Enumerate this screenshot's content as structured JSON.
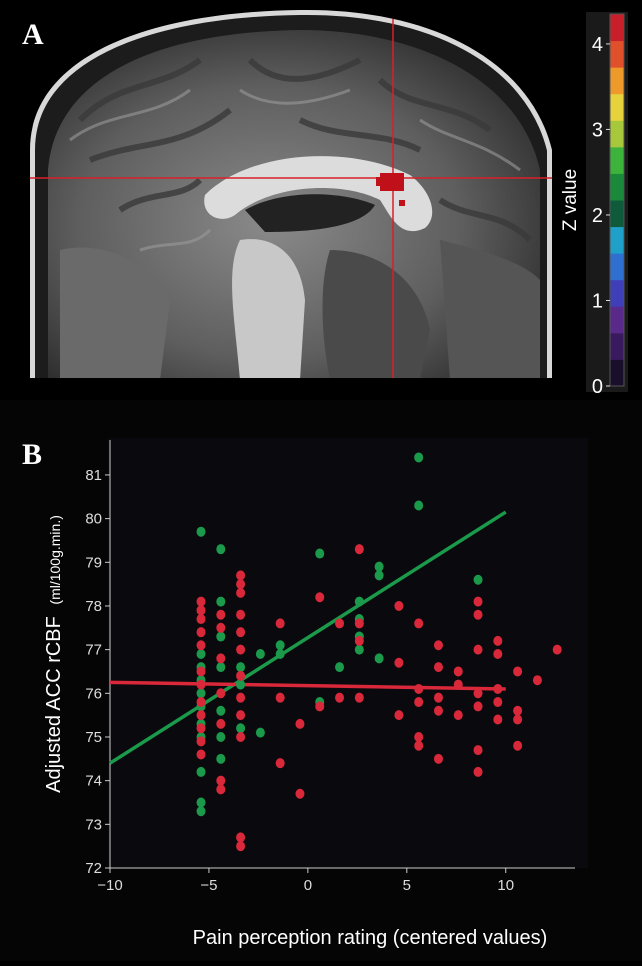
{
  "figure": {
    "panel_a_label": "A",
    "panel_b_label": "B"
  },
  "colorbar": {
    "label": "Z value",
    "ticks": [
      "0",
      "1",
      "2",
      "3",
      "4"
    ],
    "colors": [
      "#1a0f2a",
      "#3a1a5e",
      "#5a2a8a",
      "#3f3fb8",
      "#2f6fd0",
      "#1fa0c8",
      "#0f5a3a",
      "#1a8a3a",
      "#3cb43c",
      "#a8c83c",
      "#e6d23c",
      "#ee9a2a",
      "#e0502a",
      "#c8202a"
    ]
  },
  "mri": {
    "crosshair_color": "#d8202a",
    "activation_color": "#c0101a"
  },
  "chart_data": {
    "type": "scatter",
    "xlabel": "Pain perception rating (centered values)",
    "ylabel": "Adjusted ACC rCBF",
    "ylabel_unit": "(ml/100g.min.)",
    "xlim": [
      -10,
      13.5
    ],
    "ylim": [
      72,
      81.8
    ],
    "xticks": [
      -10,
      -5,
      0,
      5,
      10
    ],
    "yticks": [
      72,
      73,
      74,
      75,
      76,
      77,
      78,
      79,
      80,
      81
    ],
    "xtick_labels": [
      "−10",
      "−5",
      "0",
      "5",
      "10"
    ],
    "ytick_labels": [
      "72",
      "73",
      "74",
      "75",
      "76",
      "77",
      "78",
      "79",
      "80",
      "81"
    ],
    "grid": false,
    "series": [
      {
        "color": "#1a9a4a",
        "points": [
          [
            -5.4,
            79.7
          ],
          [
            -5.4,
            76.9
          ],
          [
            -5.4,
            76.6
          ],
          [
            -5.4,
            76.3
          ],
          [
            -5.4,
            76.0
          ],
          [
            -5.4,
            75.7
          ],
          [
            -5.4,
            75.3
          ],
          [
            -5.4,
            75.0
          ],
          [
            -5.4,
            74.2
          ],
          [
            -5.4,
            73.5
          ],
          [
            -5.4,
            73.3
          ],
          [
            -4.4,
            79.3
          ],
          [
            -4.4,
            78.1
          ],
          [
            -4.4,
            77.3
          ],
          [
            -4.4,
            76.6
          ],
          [
            -4.4,
            75.6
          ],
          [
            -4.4,
            75.0
          ],
          [
            -4.4,
            74.5
          ],
          [
            -3.4,
            76.6
          ],
          [
            -3.4,
            76.2
          ],
          [
            -3.4,
            75.2
          ],
          [
            -2.4,
            76.9
          ],
          [
            -2.4,
            75.1
          ],
          [
            -1.4,
            77.1
          ],
          [
            -1.4,
            76.9
          ],
          [
            0.6,
            79.2
          ],
          [
            0.6,
            75.8
          ],
          [
            1.6,
            76.6
          ],
          [
            2.6,
            78.1
          ],
          [
            2.6,
            77.7
          ],
          [
            2.6,
            77.3
          ],
          [
            2.6,
            77.0
          ],
          [
            3.6,
            78.9
          ],
          [
            3.6,
            78.7
          ],
          [
            3.6,
            76.8
          ],
          [
            5.6,
            81.4
          ],
          [
            5.6,
            80.3
          ],
          [
            8.6,
            78.6
          ]
        ],
        "fit": {
          "x0": -10,
          "y0": 74.4,
          "x1": 10,
          "y1": 80.15
        }
      },
      {
        "color": "#d8283a",
        "points": [
          [
            -5.4,
            78.1
          ],
          [
            -5.4,
            77.9
          ],
          [
            -5.4,
            77.7
          ],
          [
            -5.4,
            77.4
          ],
          [
            -5.4,
            77.1
          ],
          [
            -5.4,
            76.5
          ],
          [
            -5.4,
            76.2
          ],
          [
            -5.4,
            75.8
          ],
          [
            -5.4,
            75.5
          ],
          [
            -5.4,
            75.2
          ],
          [
            -5.4,
            74.9
          ],
          [
            -5.4,
            74.6
          ],
          [
            -4.4,
            77.8
          ],
          [
            -4.4,
            77.5
          ],
          [
            -4.4,
            76.8
          ],
          [
            -4.4,
            76.0
          ],
          [
            -4.4,
            75.3
          ],
          [
            -4.4,
            74.0
          ],
          [
            -4.4,
            73.8
          ],
          [
            -3.4,
            78.7
          ],
          [
            -3.4,
            78.5
          ],
          [
            -3.4,
            78.3
          ],
          [
            -3.4,
            77.8
          ],
          [
            -3.4,
            77.4
          ],
          [
            -3.4,
            77.0
          ],
          [
            -3.4,
            76.4
          ],
          [
            -3.4,
            75.9
          ],
          [
            -3.4,
            75.5
          ],
          [
            -3.4,
            75.0
          ],
          [
            -3.4,
            72.7
          ],
          [
            -3.4,
            72.5
          ],
          [
            -1.4,
            77.6
          ],
          [
            -1.4,
            75.9
          ],
          [
            -1.4,
            74.4
          ],
          [
            -0.4,
            75.3
          ],
          [
            -0.4,
            73.7
          ],
          [
            0.6,
            78.2
          ],
          [
            0.6,
            75.7
          ],
          [
            1.6,
            77.6
          ],
          [
            1.6,
            75.9
          ],
          [
            2.6,
            79.3
          ],
          [
            2.6,
            77.6
          ],
          [
            2.6,
            77.2
          ],
          [
            2.6,
            75.9
          ],
          [
            4.6,
            78.0
          ],
          [
            4.6,
            76.7
          ],
          [
            4.6,
            75.5
          ],
          [
            5.6,
            77.6
          ],
          [
            5.6,
            76.1
          ],
          [
            5.6,
            75.8
          ],
          [
            5.6,
            75.0
          ],
          [
            5.6,
            74.8
          ],
          [
            6.6,
            77.1
          ],
          [
            6.6,
            76.6
          ],
          [
            6.6,
            75.9
          ],
          [
            6.6,
            75.6
          ],
          [
            6.6,
            74.5
          ],
          [
            7.6,
            76.5
          ],
          [
            7.6,
            76.2
          ],
          [
            7.6,
            75.5
          ],
          [
            8.6,
            78.1
          ],
          [
            8.6,
            77.8
          ],
          [
            8.6,
            77.0
          ],
          [
            8.6,
            76.0
          ],
          [
            8.6,
            75.7
          ],
          [
            8.6,
            74.7
          ],
          [
            8.6,
            74.2
          ],
          [
            9.6,
            77.2
          ],
          [
            9.6,
            76.9
          ],
          [
            9.6,
            76.1
          ],
          [
            9.6,
            75.8
          ],
          [
            9.6,
            75.4
          ],
          [
            10.6,
            76.5
          ],
          [
            10.6,
            75.6
          ],
          [
            10.6,
            75.4
          ],
          [
            10.6,
            74.8
          ],
          [
            11.6,
            76.3
          ],
          [
            12.6,
            77.0
          ]
        ],
        "fit": {
          "x0": -10,
          "y0": 76.25,
          "x1": 10,
          "y1": 76.1
        }
      }
    ]
  }
}
